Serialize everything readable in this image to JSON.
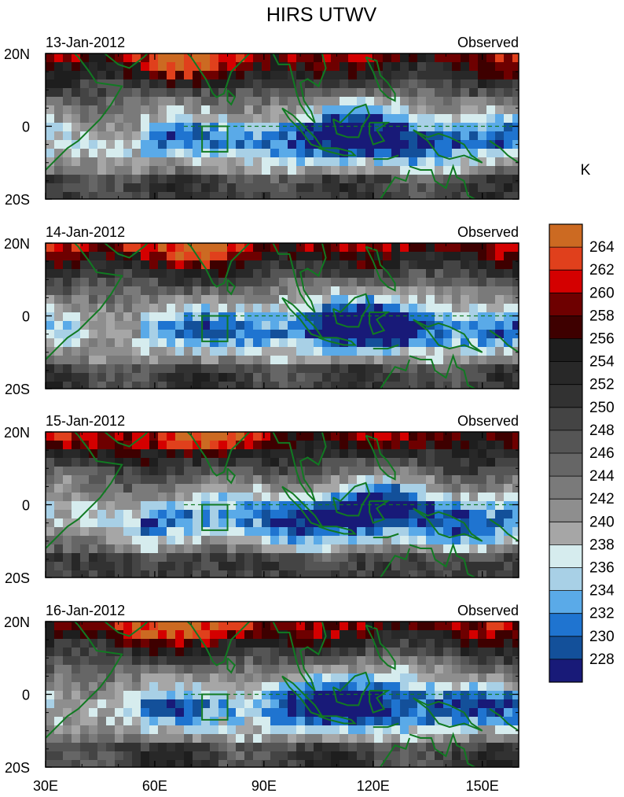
{
  "chart_data": {
    "type": "heatmap",
    "title": "HIRS UTWV",
    "units": "K",
    "x_ticks": [
      "30E",
      "60E",
      "90E",
      "120E",
      "150E"
    ],
    "x_values": [
      30,
      60,
      90,
      120,
      150
    ],
    "xlim": [
      30,
      160
    ],
    "y_ticks": [
      "20N",
      "0",
      "20S"
    ],
    "y_values": [
      20,
      0,
      -20
    ],
    "ylim": [
      -20,
      20
    ],
    "colorbar": {
      "levels": [
        "264",
        "262",
        "260",
        "258",
        "256",
        "254",
        "252",
        "250",
        "248",
        "246",
        "244",
        "242",
        "240",
        "238",
        "236",
        "234",
        "232",
        "230",
        "228"
      ],
      "colors": [
        "#cc6a22",
        "#e0401c",
        "#d40000",
        "#6e0000",
        "#3e0000",
        "#1e1e1e",
        "#282828",
        "#323232",
        "#444444",
        "#555555",
        "#666666",
        "#7a7a7a",
        "#8e8e8e",
        "#a6a6a6",
        "#d6ecee",
        "#a8d0e6",
        "#5aaae8",
        "#1f74d0",
        "#13509a",
        "#181a78"
      ]
    },
    "panels": [
      {
        "date": "13-Jan-2012",
        "label": "Observed"
      },
      {
        "date": "14-Jan-2012",
        "label": "Observed"
      },
      {
        "date": "15-Jan-2012",
        "label": "Observed"
      },
      {
        "date": "16-Jan-2012",
        "label": "Observed"
      }
    ],
    "overlay": {
      "box": {
        "lon": [
          73,
          80
        ],
        "lat": [
          -7,
          0
        ]
      }
    }
  }
}
